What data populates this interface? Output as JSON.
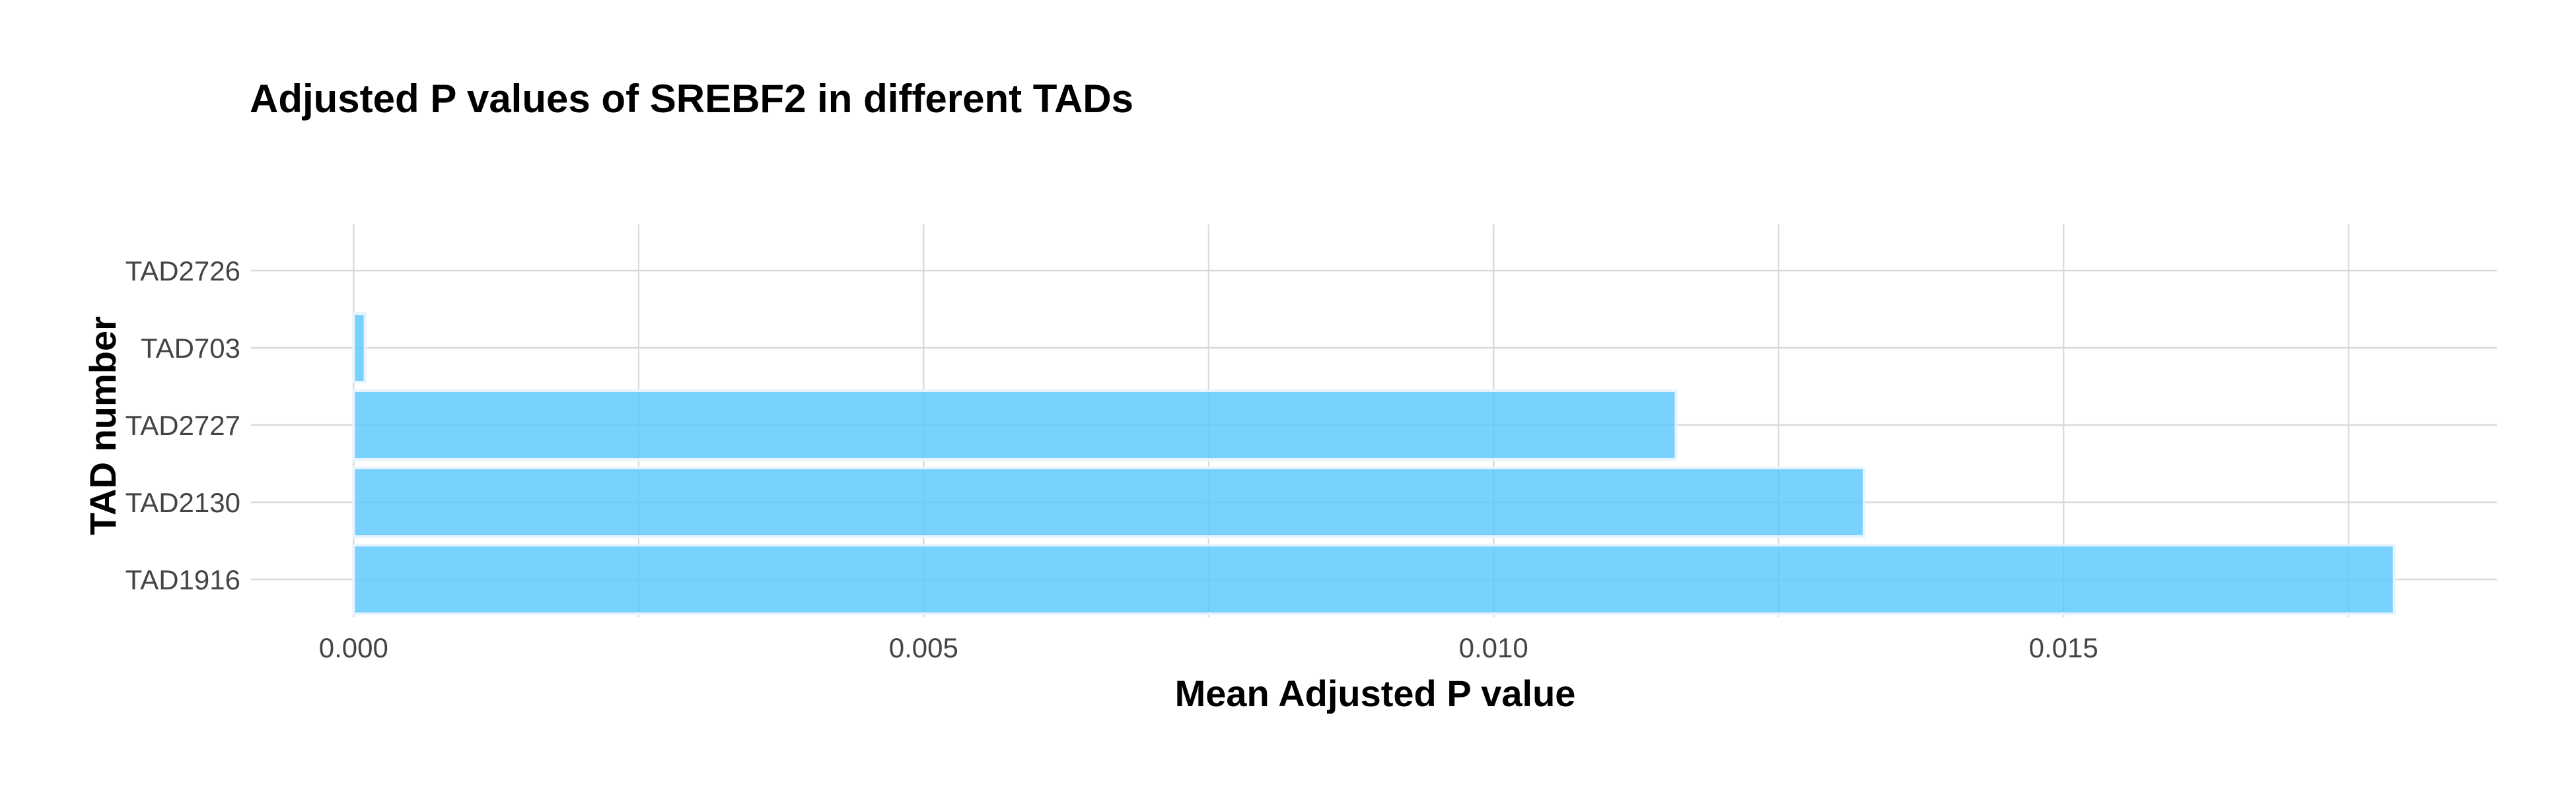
{
  "chart_data": {
    "type": "bar",
    "orientation": "horizontal",
    "title": "Adjusted P values of SREBF2 in different TADs",
    "xlabel": "Mean Adjusted P value",
    "ylabel": "TAD number",
    "categories": [
      "TAD2726",
      "TAD703",
      "TAD2727",
      "TAD2130",
      "TAD1916"
    ],
    "values": [
      0,
      0.0001,
      0.0116,
      0.01325,
      0.0179
    ],
    "x_ticks": [
      "0.000",
      "0.005",
      "0.010",
      "0.015"
    ],
    "x_tick_values": [
      0,
      0.005,
      0.01,
      0.015
    ],
    "xlim": [
      -0.0009,
      0.0188
    ],
    "grid": true,
    "bar_color": "#5BC8FC",
    "bar_outline_color": "#E8F4FD",
    "grid_color": "#D9D9D9"
  }
}
